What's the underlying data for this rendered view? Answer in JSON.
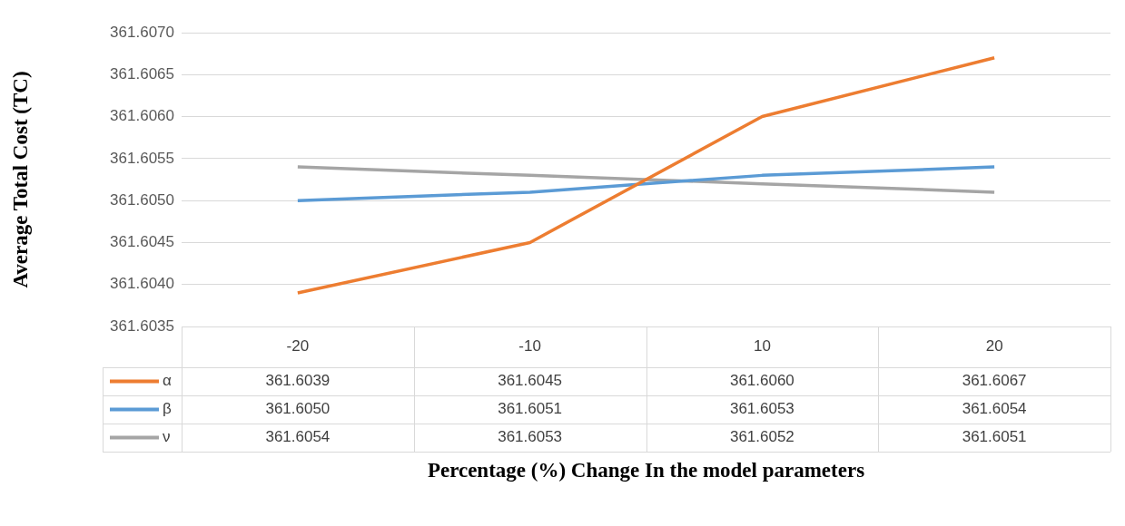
{
  "chart_data": {
    "type": "line",
    "xlabel": "Percentage (%) Change In the model parameters",
    "ylabel": "Average Total Cost (TC)",
    "categories": [
      "-20",
      "-10",
      "10",
      "20"
    ],
    "series": [
      {
        "name": "α",
        "color": "#ed7d31",
        "values": [
          361.6039,
          361.6045,
          361.606,
          361.6067
        ],
        "value_labels": [
          "361.6039",
          "361.6045",
          "361.6060",
          "361.6067"
        ]
      },
      {
        "name": "β",
        "color": "#5b9bd5",
        "values": [
          361.605,
          361.6051,
          361.6053,
          361.6054
        ],
        "value_labels": [
          "361.6050",
          "361.6051",
          "361.6053",
          "361.6054"
        ]
      },
      {
        "name": "ν",
        "color": "#a5a5a5",
        "values": [
          361.6054,
          361.6053,
          361.6052,
          361.6051
        ],
        "value_labels": [
          "361.6054",
          "361.6053",
          "361.6052",
          "361.6051"
        ]
      }
    ],
    "ylim": [
      361.6035,
      361.607
    ],
    "yticks": [
      361.6035,
      {
        "value": 361.604,
        "label": "361.6040"
      },
      361.6045,
      {
        "value": 361.605,
        "label": "361.6050"
      },
      361.6055,
      {
        "value": 361.606,
        "label": "361.6060"
      },
      361.6065,
      {
        "value": 361.607,
        "label": "361.6070"
      }
    ],
    "grid": "y",
    "legend": "bottom",
    "marker": "none",
    "line_style": "solid"
  }
}
